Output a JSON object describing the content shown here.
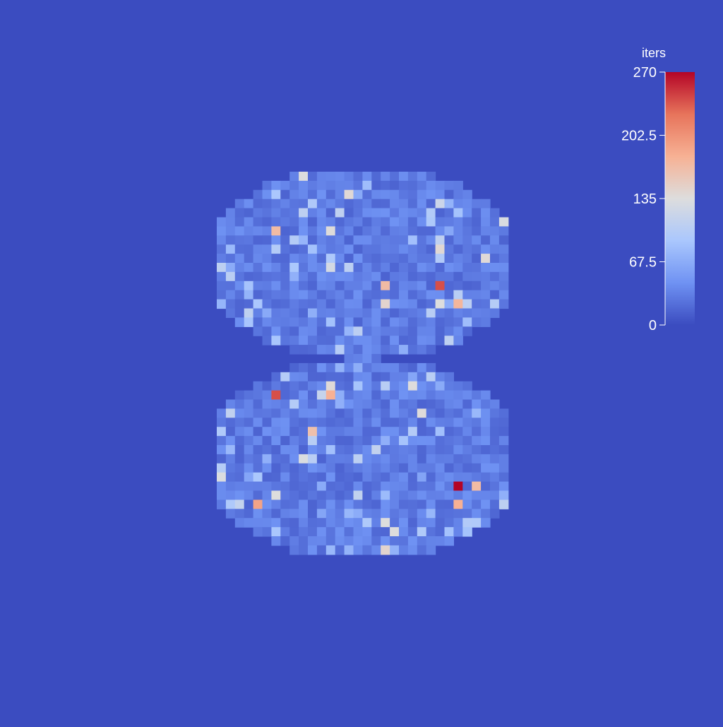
{
  "chart_data": {
    "type": "heatmap",
    "title": "",
    "xlabel": "",
    "ylabel": "",
    "colorbar": {
      "title": "iters",
      "range": [
        0,
        270
      ],
      "ticks": [
        "0",
        "67.5",
        "135",
        "202.5",
        "270"
      ],
      "tick_values": [
        0,
        67.5,
        135,
        202.5,
        270
      ],
      "colormap": "coolwarm",
      "colors": [
        "#3b4cc0",
        "#6f92f3",
        "#aac7fd",
        "#dddddd",
        "#f7b194",
        "#e7745b",
        "#b40426"
      ],
      "placement": "right"
    },
    "grid": false,
    "legend": "none",
    "cells": {
      "background_value": 0,
      "shape": "two stacked blobs, 16x10 lattice each, values mostly 5-60",
      "hotspots": [
        {
          "row": 6,
          "col": 12,
          "value": 240
        },
        {
          "row": 7,
          "col": 12,
          "value": 135
        },
        {
          "row": 7,
          "col": 13,
          "value": 175
        },
        {
          "row": 6,
          "col": 9,
          "value": 170
        },
        {
          "row": 1,
          "col": 7,
          "value": 140
        },
        {
          "row": 3,
          "col": 3,
          "value": 170
        },
        {
          "row": 12,
          "col": 3,
          "value": 240
        },
        {
          "row": 12,
          "col": 6,
          "value": 180
        },
        {
          "row": 14,
          "col": 5,
          "value": 165
        },
        {
          "row": 17,
          "col": 13,
          "value": 270
        },
        {
          "row": 17,
          "col": 14,
          "value": 170
        },
        {
          "row": 18,
          "col": 13,
          "value": 180
        },
        {
          "row": 18,
          "col": 2,
          "value": 190
        },
        {
          "row": 19,
          "col": 9,
          "value": 135
        }
      ]
    }
  }
}
